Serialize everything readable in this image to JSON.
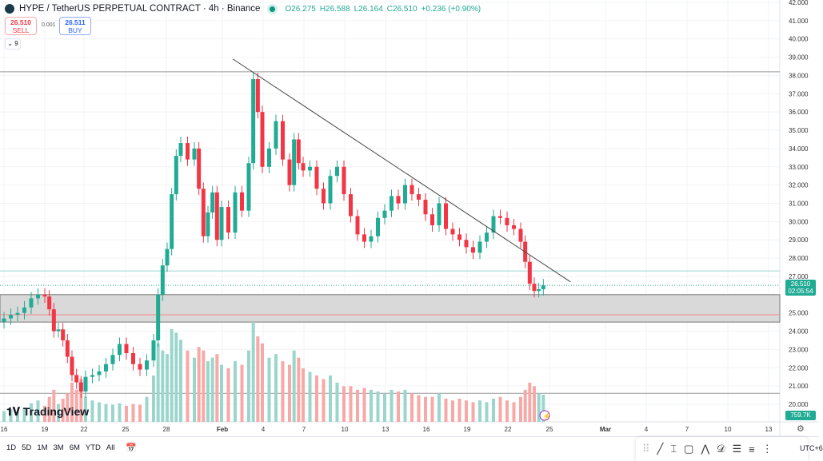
{
  "header": {
    "symbol": "HYPE / TetherUS PERPETUAL CONTRACT · 4h · Binance",
    "open": "O26.275",
    "high": "H26.588",
    "low": "L26.164",
    "close": "C26.510",
    "change": "+0.236 (+0.90%)"
  },
  "trade": {
    "sell_price": "26.510",
    "sell_label": "SELL",
    "spread": "0.001",
    "buy_price": "26.511",
    "buy_label": "BUY"
  },
  "indicators_toggle": "9",
  "brand": "TradingView",
  "current_price": "26.510",
  "countdown": "02:05:54",
  "volume_label": "759.7K",
  "colors": {
    "up": "#22ab94",
    "down": "#f23645",
    "vol_up": "#9bd6cc",
    "vol_down": "#f7a9a7"
  },
  "ranges": [
    "1D",
    "5D",
    "1M",
    "3M",
    "6M",
    "YTD",
    "All"
  ],
  "timezone": "UTC+6",
  "drawing_tools": [
    "trend-line",
    "vertical-measure",
    "rectangle",
    "path",
    "pattern",
    "fib-retracement",
    "parallel-lines",
    "regression"
  ],
  "chart_data": {
    "type": "candlestick",
    "title": "HYPE / TetherUS PERPETUAL CONTRACT · 4h · Binance",
    "ylim": [
      19.5,
      42
    ],
    "y_ticks": [
      "42.000",
      "41.000",
      "40.000",
      "39.000",
      "38.000",
      "37.000",
      "36.000",
      "35.000",
      "34.000",
      "33.000",
      "32.000",
      "31.000",
      "30.000",
      "29.000",
      "28.000",
      "27.000",
      "25.000",
      "24.000",
      "23.000",
      "22.000",
      "21.000",
      "20.000"
    ],
    "x_ticks": [
      "16",
      "19",
      "22",
      "25",
      "28",
      "Feb",
      "4",
      "7",
      "10",
      "13",
      "16",
      "19",
      "22",
      "25",
      "Mar",
      "4",
      "7",
      "10",
      "13"
    ],
    "time": [
      "Jan 16 00",
      "Jan 16 12",
      "Jan 17 00",
      "Jan 17 12",
      "Jan 18 00",
      "Jan 18 12",
      "Jan 19 00",
      "Jan 19 08",
      "Jan 19 16",
      "Jan 20 00",
      "Jan 20 08",
      "Jan 20 16",
      "Jan 21 00",
      "Jan 21 08",
      "Jan 21 16",
      "Jan 22 00",
      "Jan 22 12",
      "Jan 23 00",
      "Jan 23 12",
      "Jan 24 00",
      "Jan 24 12",
      "Jan 25 00",
      "Jan 25 12",
      "Jan 26 00",
      "Jan 26 12",
      "Jan 27 00",
      "Jan 27 08",
      "Jan 27 16",
      "Jan 28 00",
      "Jan 28 08",
      "Jan 28 16",
      "Jan 29 00",
      "Jan 29 12",
      "Jan 30 00",
      "Jan 30 08",
      "Jan 30 16",
      "Jan 31 00",
      "Jan 31 08",
      "Jan 31 16",
      "Feb 1 00",
      "Feb 1 12",
      "Feb 2 00",
      "Feb 2 12",
      "Feb 3 00",
      "Feb 3 08",
      "Feb 3 16",
      "Feb 4 00",
      "Feb 4 12",
      "Feb 5 00",
      "Feb 5 12",
      "Feb 6 00",
      "Feb 6 08",
      "Feb 6 16",
      "Feb 7 00",
      "Feb 7 12",
      "Feb 8 00",
      "Feb 8 12",
      "Feb 9 00",
      "Feb 9 12",
      "Feb 10 00",
      "Feb 10 12",
      "Feb 11 00",
      "Feb 11 12",
      "Feb 12 00",
      "Feb 12 12",
      "Feb 13 00",
      "Feb 13 12",
      "Feb 14 00",
      "Feb 14 12",
      "Feb 15 00",
      "Feb 15 12",
      "Feb 16 00",
      "Feb 16 12",
      "Feb 17 00",
      "Feb 17 12",
      "Feb 18 00",
      "Feb 18 12",
      "Feb 19 00",
      "Feb 19 12",
      "Feb 20 00",
      "Feb 20 12",
      "Feb 21 00",
      "Feb 21 12",
      "Feb 22 00",
      "Feb 22 12",
      "Feb 23 00",
      "Feb 23 08",
      "Feb 23 16",
      "Feb 24 00",
      "Feb 24 08",
      "Feb 24 16"
    ],
    "close": [
      24.7,
      24.9,
      25.0,
      25.3,
      25.8,
      26.0,
      25.9,
      25.2,
      24.0,
      24.1,
      23.5,
      22.6,
      21.6,
      21.2,
      20.7,
      21.5,
      21.6,
      21.8,
      22.2,
      22.7,
      23.3,
      22.8,
      22.2,
      21.9,
      22.4,
      23.5,
      26.0,
      27.6,
      28.5,
      31.5,
      33.6,
      34.3,
      33.4,
      34.0,
      31.8,
      29.2,
      30.5,
      31.6,
      29.0,
      30.8,
      29.4,
      31.6,
      30.6,
      33.2,
      37.8,
      36.0,
      33.0,
      34.0,
      35.5,
      33.4,
      32.0,
      34.5,
      33.2,
      32.8,
      33.0,
      31.8,
      31.0,
      32.5,
      33.0,
      31.5,
      30.3,
      29.3,
      28.9,
      29.2,
      30.2,
      30.6,
      31.4,
      31.0,
      32.0,
      31.5,
      31.2,
      30.4,
      29.8,
      31.0,
      29.6,
      29.3,
      29.0,
      28.6,
      28.3,
      28.9,
      29.4,
      30.3,
      30.2,
      29.8,
      29.6,
      28.9,
      27.8,
      26.6,
      26.2,
      26.3,
      26.51
    ],
    "volume_k": [
      300,
      350,
      280,
      400,
      520,
      600,
      450,
      700,
      900,
      500,
      650,
      800,
      1100,
      900,
      1200,
      700,
      600,
      550,
      500,
      480,
      520,
      450,
      500,
      480,
      700,
      1300,
      2200,
      2000,
      1900,
      2600,
      2500,
      2300,
      2000,
      1800,
      2100,
      2000,
      1700,
      1800,
      1900,
      1600,
      1500,
      1700,
      1600,
      2000,
      2800,
      2400,
      2200,
      1800,
      1900,
      1700,
      1600,
      2000,
      1800,
      1500,
      1400,
      1300,
      1200,
      1300,
      1100,
      1000,
      1000,
      900,
      950,
      900,
      850,
      800,
      900,
      850,
      900,
      800,
      750,
      700,
      700,
      800,
      650,
      600,
      650,
      600,
      550,
      600,
      550,
      650,
      700,
      600,
      550,
      700,
      900,
      1100,
      1000,
      800,
      759.7
    ],
    "levels": {
      "resistance_top": 38.2,
      "level_teal": 27.3,
      "zone": [
        24.5,
        26.0
      ],
      "zone_line": 24.9,
      "low_line": 20.6
    },
    "trendline": {
      "from": [
        "Feb 1 20",
        38.9
      ],
      "to": [
        "Feb 26 16",
        26.7
      ]
    }
  }
}
